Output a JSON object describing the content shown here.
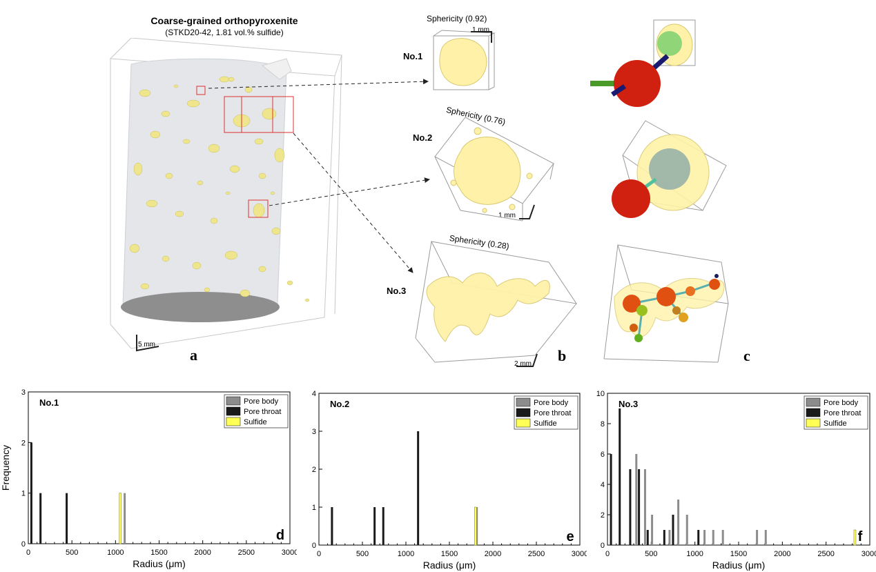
{
  "panel_a": {
    "title": "Coarse-grained orthopyroxenite",
    "subtitle": "(STKD20-42, 1.81 vol.% sulfide)",
    "scale": "5 mm",
    "letter": "a"
  },
  "panel_b": {
    "letter": "b",
    "items": [
      {
        "label": "No.1",
        "sphericity": "Sphericity (0.92)",
        "scale": "1 mm"
      },
      {
        "label": "No.2",
        "sphericity": "Sphericity (0.76)",
        "scale": "1 mm"
      },
      {
        "label": "No.3",
        "sphericity": "Sphericity (0.28)",
        "scale": "2 mm"
      }
    ]
  },
  "panel_c": {
    "letter": "c"
  },
  "colors": {
    "pore_body": "#8c8c8c",
    "pore_throat": "#1a1a1a",
    "sulfide": "#ffff55"
  },
  "chart_data": [
    {
      "type": "bar",
      "panel": "d",
      "title": "No.1",
      "xlabel": "Radius (μm)",
      "ylabel": "Frequency",
      "xlim": [
        0,
        3000
      ],
      "ylim": [
        0,
        3
      ],
      "xticks": [
        0,
        500,
        1000,
        1500,
        2000,
        2500,
        3000
      ],
      "yticks": [
        0,
        1,
        2,
        3
      ],
      "legend": "top-right",
      "series": [
        {
          "name": "Pore body",
          "points": [
            {
              "x": 1105,
              "y": 1
            }
          ]
        },
        {
          "name": "Pore throat",
          "points": [
            {
              "x": 35,
              "y": 2
            },
            {
              "x": 140,
              "y": 1
            },
            {
              "x": 440,
              "y": 1
            }
          ]
        },
        {
          "name": "Sulfide",
          "points": [
            {
              "x": 1055,
              "y": 1
            }
          ]
        }
      ]
    },
    {
      "type": "bar",
      "panel": "e",
      "title": "No.2",
      "xlabel": "Radius (μm)",
      "ylabel": "",
      "xlim": [
        0,
        3000
      ],
      "ylim": [
        0,
        4
      ],
      "xticks": [
        0,
        500,
        1000,
        1500,
        2000,
        2500,
        3000
      ],
      "yticks": [
        0,
        1,
        2,
        3,
        4
      ],
      "legend": "top-right",
      "series": [
        {
          "name": "Pore body",
          "points": [
            {
              "x": 1815,
              "y": 1
            }
          ]
        },
        {
          "name": "Pore throat",
          "points": [
            {
              "x": 150,
              "y": 1
            },
            {
              "x": 640,
              "y": 1
            },
            {
              "x": 740,
              "y": 1
            },
            {
              "x": 1140,
              "y": 3
            }
          ]
        },
        {
          "name": "Sulfide",
          "points": [
            {
              "x": 1800,
              "y": 1
            }
          ]
        }
      ]
    },
    {
      "type": "bar",
      "panel": "f",
      "title": "No.3",
      "xlabel": "Radius (μm)",
      "ylabel": "",
      "xlim": [
        0,
        3000
      ],
      "ylim": [
        0,
        10
      ],
      "xticks": [
        0,
        500,
        1000,
        1500,
        2000,
        2500,
        3000
      ],
      "yticks": [
        0,
        2,
        4,
        6,
        8,
        10
      ],
      "legend": "top-right",
      "series": [
        {
          "name": "Pore body",
          "points": [
            {
              "x": 330,
              "y": 6
            },
            {
              "x": 430,
              "y": 5
            },
            {
              "x": 510,
              "y": 2
            },
            {
              "x": 710,
              "y": 1
            },
            {
              "x": 810,
              "y": 3
            },
            {
              "x": 910,
              "y": 2
            },
            {
              "x": 1110,
              "y": 1
            },
            {
              "x": 1210,
              "y": 1
            },
            {
              "x": 1320,
              "y": 1
            },
            {
              "x": 1710,
              "y": 1
            },
            {
              "x": 1810,
              "y": 1
            }
          ]
        },
        {
          "name": "Pore throat",
          "points": [
            {
              "x": 40,
              "y": 6
            },
            {
              "x": 140,
              "y": 9
            },
            {
              "x": 260,
              "y": 5
            },
            {
              "x": 360,
              "y": 5
            },
            {
              "x": 460,
              "y": 1
            },
            {
              "x": 650,
              "y": 1
            },
            {
              "x": 750,
              "y": 2
            },
            {
              "x": 1040,
              "y": 1
            }
          ]
        },
        {
          "name": "Sulfide",
          "points": [
            {
              "x": 2830,
              "y": 1
            }
          ]
        }
      ]
    }
  ]
}
